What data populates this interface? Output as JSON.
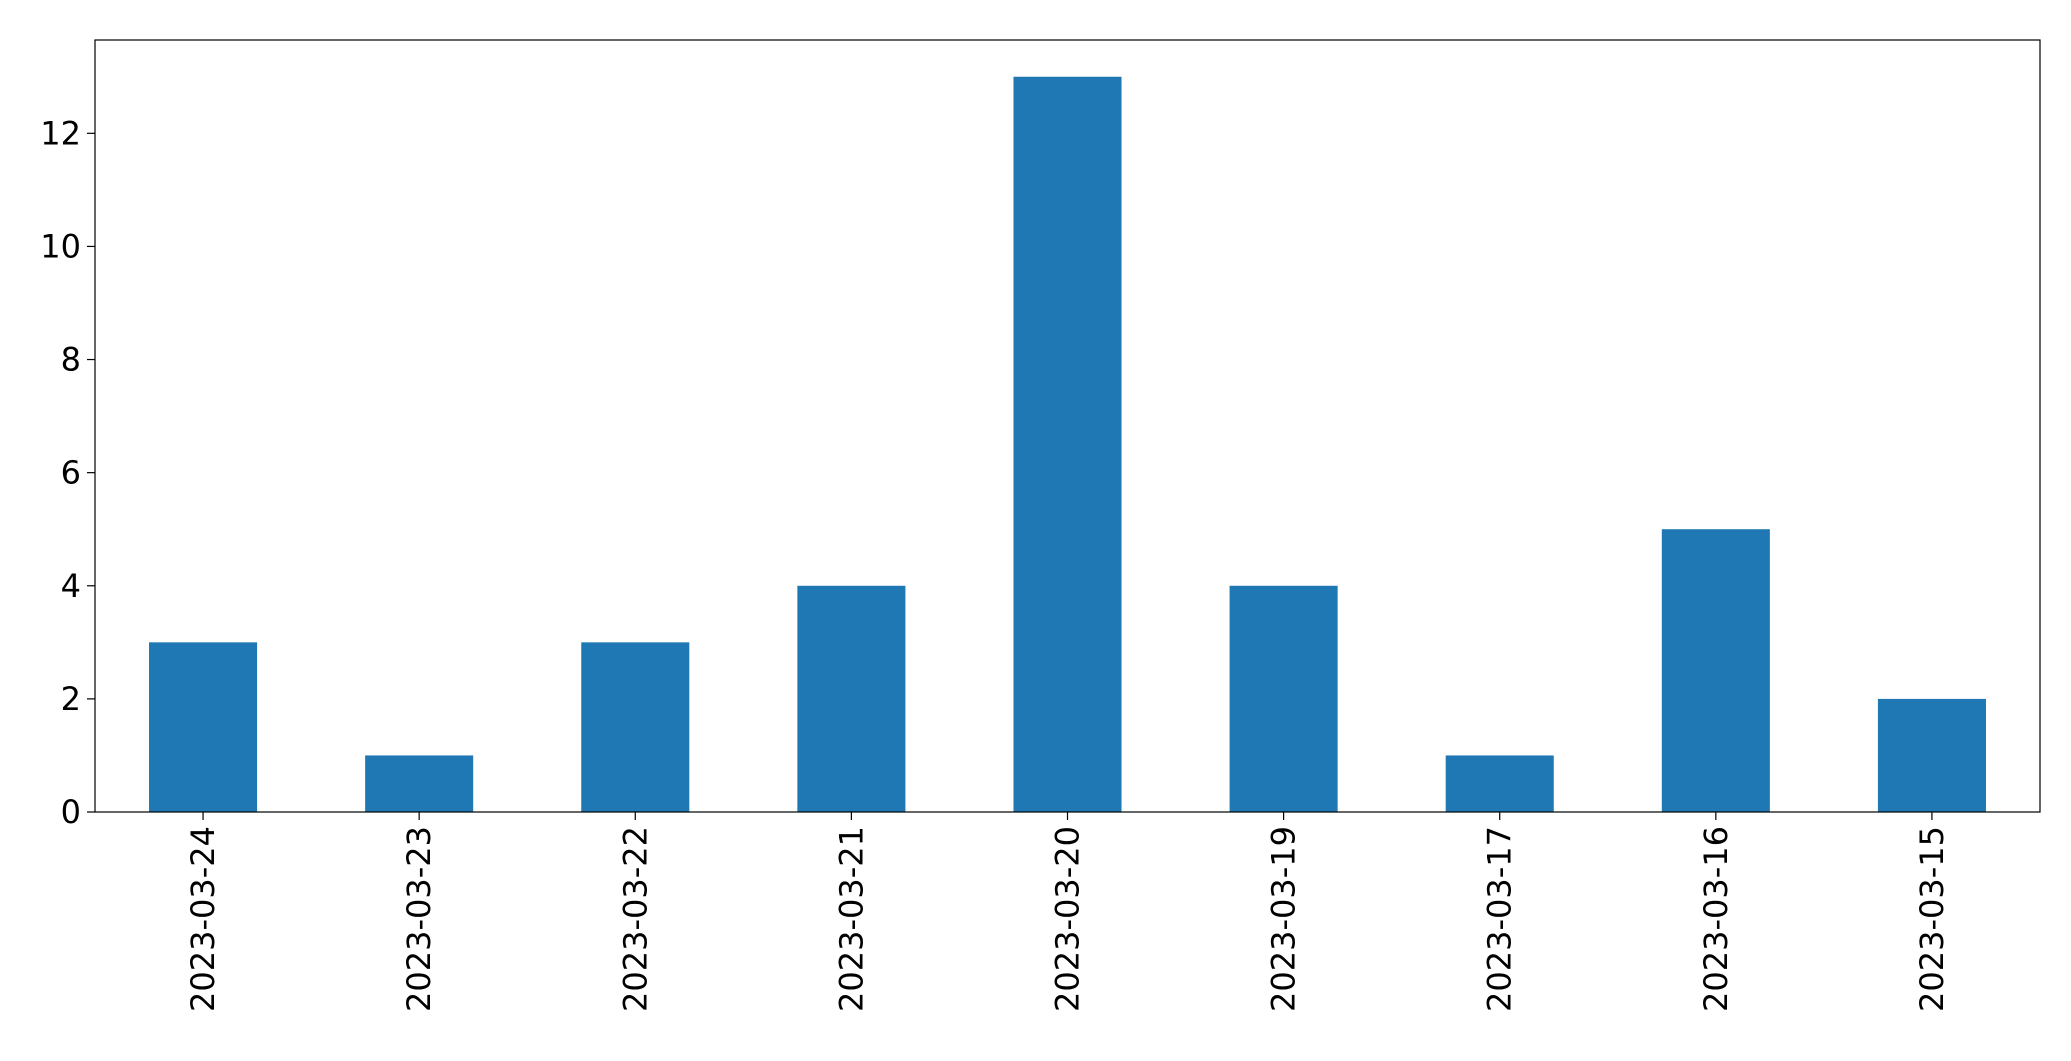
{
  "chart_data": {
    "type": "bar",
    "categories": [
      "2023-03-24",
      "2023-03-23",
      "2023-03-22",
      "2023-03-21",
      "2023-03-20",
      "2023-03-19",
      "2023-03-17",
      "2023-03-16",
      "2023-03-15"
    ],
    "values": [
      3,
      1,
      3,
      4,
      13,
      4,
      1,
      5,
      2
    ],
    "title": "",
    "xlabel": "",
    "ylabel": "",
    "ylim": [
      0,
      13.65
    ],
    "yticks": [
      0,
      2,
      4,
      6,
      8,
      10,
      12
    ],
    "grid": false,
    "legend": "none",
    "bar_color": "#1f77b4"
  }
}
